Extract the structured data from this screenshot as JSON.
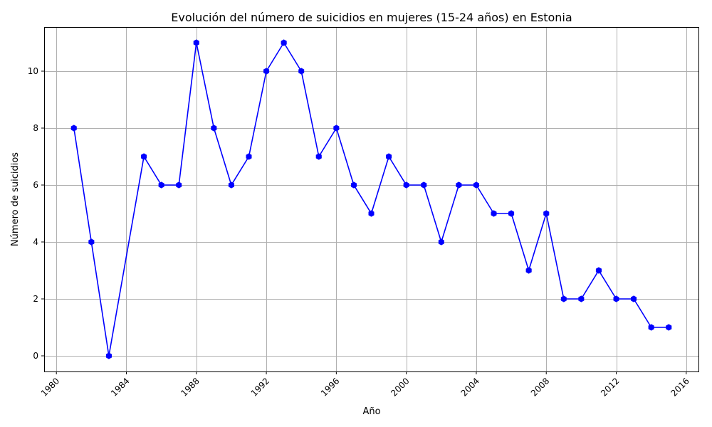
{
  "chart_data": {
    "type": "line",
    "title": "Evolución del número de suicidios en mujeres (15-24 años) en Estonia",
    "xlabel": "Año",
    "ylabel": "Número de suicidios",
    "xlim": [
      1979.3,
      2016.7
    ],
    "ylim": [
      -0.55,
      11.55
    ],
    "xticks": [
      1980,
      1984,
      1988,
      1992,
      1996,
      2000,
      2004,
      2008,
      2012,
      2016
    ],
    "yticks": [
      0,
      2,
      4,
      6,
      8,
      10
    ],
    "grid": true,
    "color": "#0000ff",
    "series": [
      {
        "x": [
          1981,
          1982,
          1983,
          1985,
          1986,
          1987,
          1988,
          1989,
          1990,
          1991,
          1992,
          1993,
          1994,
          1995,
          1996,
          1997,
          1998,
          1999,
          2000,
          2001,
          2002,
          2003,
          2004,
          2005,
          2006,
          2007,
          2008,
          2009,
          2010,
          2011,
          2012,
          2013,
          2014,
          2015
        ],
        "values": [
          8,
          4,
          0,
          7,
          6,
          6,
          11,
          8,
          6,
          7,
          10,
          11,
          10,
          7,
          8,
          6,
          5,
          7,
          6,
          6,
          4,
          6,
          6,
          5,
          5,
          3,
          5,
          2,
          2,
          3,
          2,
          2,
          1,
          1
        ]
      }
    ]
  }
}
